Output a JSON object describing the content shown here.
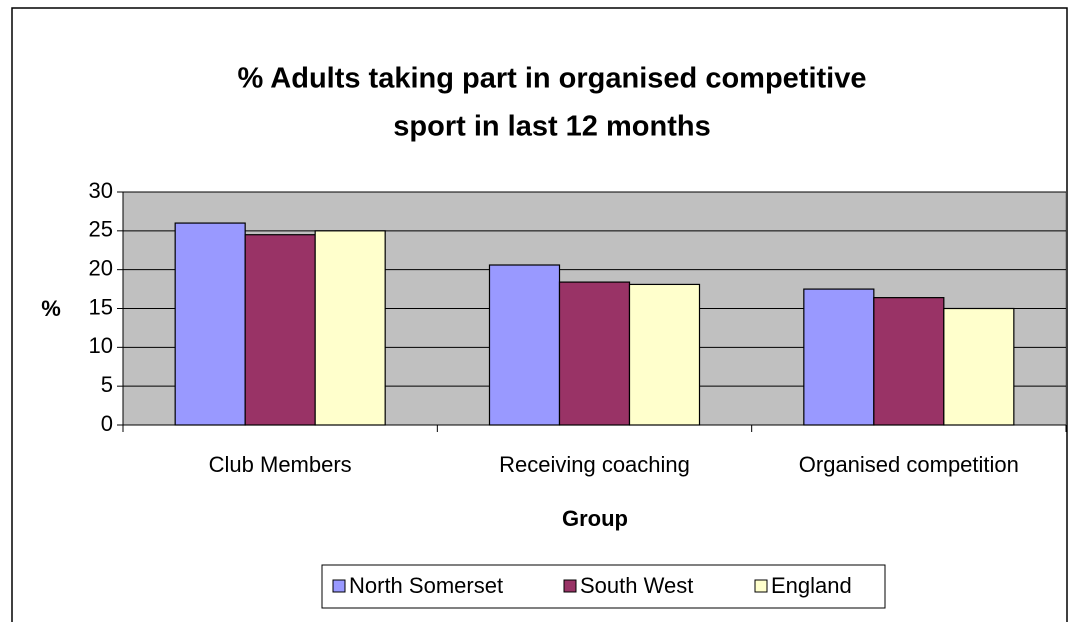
{
  "chart_data": {
    "type": "bar",
    "title": [
      "% Adults taking part in organised competitive",
      "sport in last 12 months"
    ],
    "x_label": "Group",
    "y_label": "%",
    "categories": [
      "Club Members",
      "Receiving coaching",
      "Organised competition"
    ],
    "series": [
      {
        "name": "North Somerset",
        "color": "#9999ff",
        "values": [
          26,
          20.6,
          17.5
        ]
      },
      {
        "name": "South West",
        "color": "#993366",
        "values": [
          24.5,
          18.4,
          16.4
        ]
      },
      {
        "name": "England",
        "color": "#ffffcc",
        "values": [
          25,
          18.1,
          15
        ]
      }
    ],
    "ylim": [
      0,
      30
    ],
    "yticks": [
      0,
      5,
      10,
      15,
      20,
      25,
      30
    ],
    "grid": true,
    "legend": "bottom",
    "plot_background": "#c0c0c0"
  }
}
